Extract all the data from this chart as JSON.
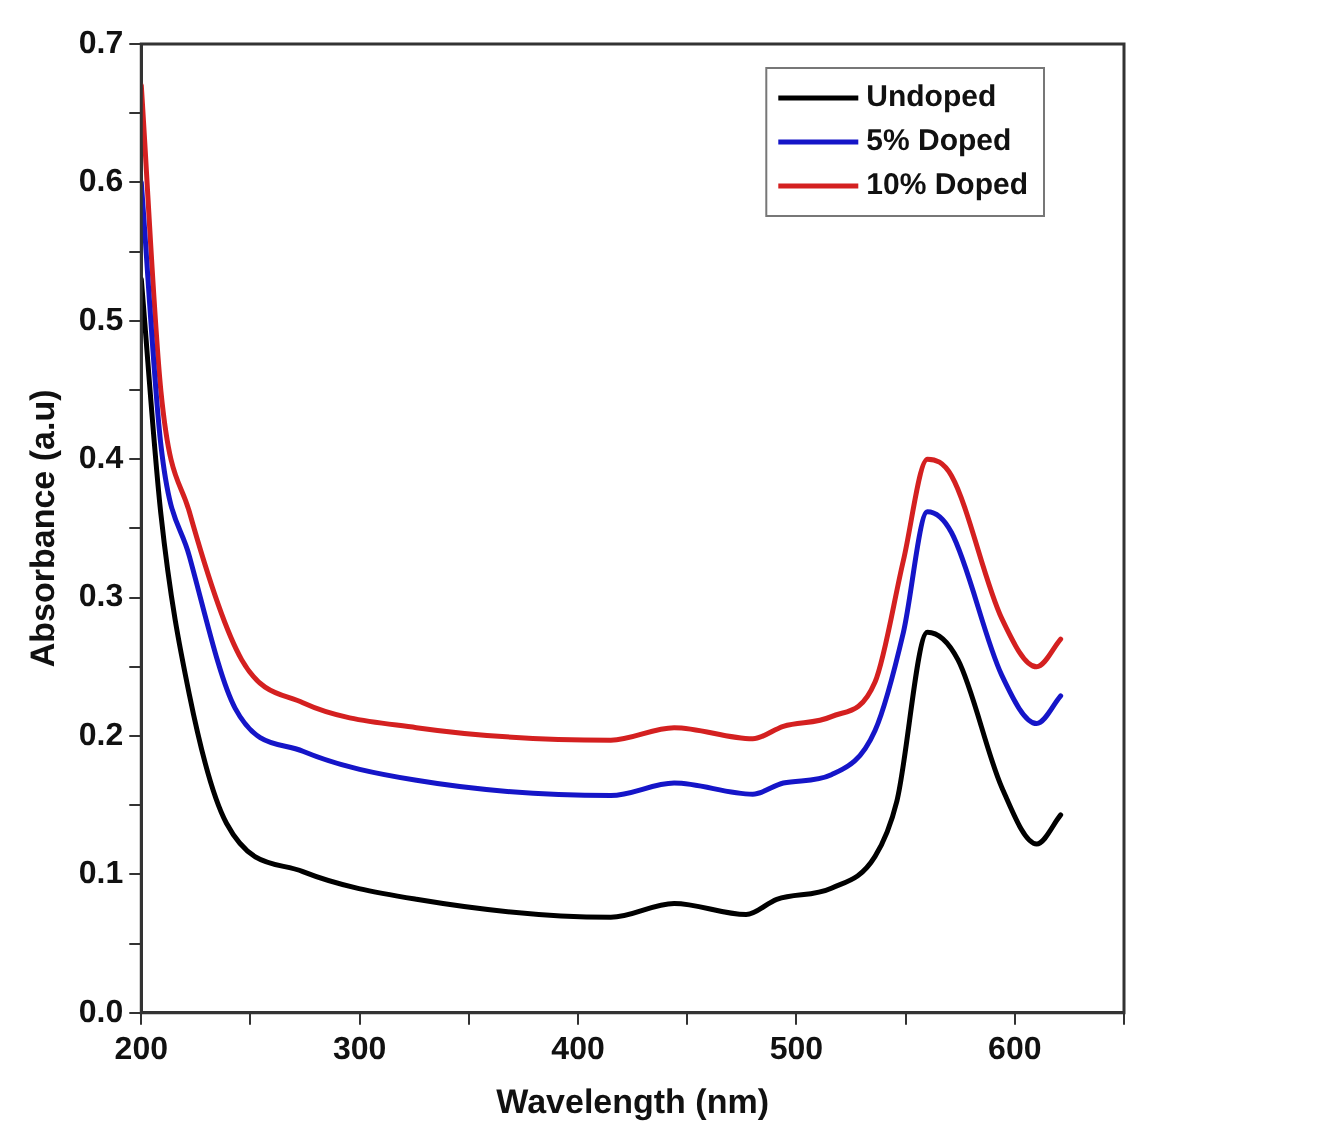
{
  "chart_data": {
    "type": "line",
    "xlabel": "Wavelength (nm)",
    "ylabel": "Absorbance (a.u)",
    "xlim": [
      200,
      650
    ],
    "ylim": [
      0,
      0.7
    ],
    "xticks": [
      200,
      {
        "value": 250,
        "label": null
      },
      300,
      {
        "value": 350,
        "label": null
      },
      400,
      {
        "value": 450,
        "label": null
      },
      500,
      {
        "value": 550,
        "label": null
      },
      600,
      {
        "value": 650,
        "label": null
      }
    ],
    "yticks": [
      {
        "value": 0,
        "label": "0.0"
      },
      {
        "value": 0.05,
        "label": null
      },
      {
        "value": 0.1,
        "label": "0.1"
      },
      {
        "value": 0.15,
        "label": null
      },
      {
        "value": 0.2,
        "label": "0.2"
      },
      {
        "value": 0.25,
        "label": null
      },
      {
        "value": 0.3,
        "label": "0.3"
      },
      {
        "value": 0.35,
        "label": null
      },
      {
        "value": 0.4,
        "label": "0.4"
      },
      {
        "value": 0.45,
        "label": null
      },
      {
        "value": 0.5,
        "label": "0.5"
      },
      {
        "value": 0.55,
        "label": null
      },
      {
        "value": 0.6,
        "label": "0.6"
      },
      {
        "value": 0.65,
        "label": null
      },
      {
        "value": 0.7,
        "label": "0.7"
      }
    ],
    "grid": false,
    "legend": "top right",
    "marker": "none",
    "line_style": "solid",
    "series": [
      {
        "name": "Undoped",
        "color": "#000000",
        "x": [
          200,
          209,
          222,
          239,
          274,
          326,
          415,
          444,
          477,
          491,
          516,
          536,
          546,
          560,
          574,
          594,
          610,
          621
        ],
        "values": [
          0.53,
          0.36,
          0.23,
          0.137,
          0.102,
          0.082,
          0.069,
          0.079,
          0.071,
          0.082,
          0.09,
          0.113,
          0.153,
          0.275,
          0.255,
          0.163,
          0.122,
          0.143
        ]
      },
      {
        "name": "5% Doped",
        "color": "#1515c8",
        "x": [
          200,
          209,
          222,
          243,
          274,
          326,
          415,
          444,
          480,
          494,
          516,
          536,
          549,
          560,
          571,
          594,
          610,
          621
        ],
        "values": [
          0.6,
          0.41,
          0.33,
          0.22,
          0.189,
          0.168,
          0.157,
          0.166,
          0.158,
          0.166,
          0.172,
          0.204,
          0.275,
          0.362,
          0.347,
          0.244,
          0.209,
          0.229
        ]
      },
      {
        "name": "10% Doped",
        "color": "#d42020",
        "x": [
          200,
          209,
          222,
          246,
          274,
          326,
          415,
          444,
          480,
          494,
          516,
          536,
          549,
          560,
          571,
          594,
          610,
          621
        ],
        "values": [
          0.67,
          0.449,
          0.362,
          0.255,
          0.224,
          0.206,
          0.197,
          0.206,
          0.198,
          0.207,
          0.214,
          0.239,
          0.327,
          0.4,
          0.388,
          0.285,
          0.25,
          0.27
        ]
      }
    ]
  }
}
